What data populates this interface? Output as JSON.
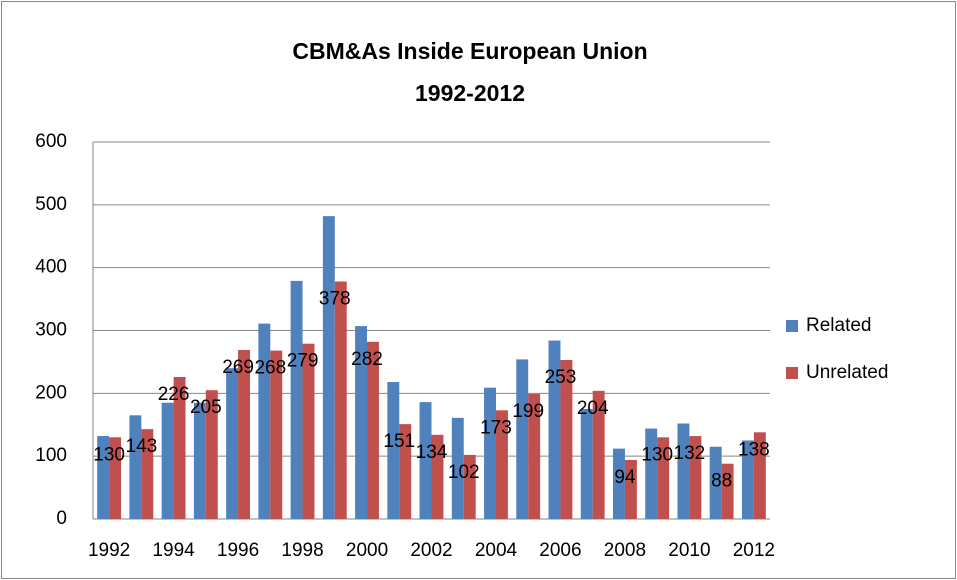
{
  "chart_data": {
    "type": "bar",
    "title": [
      "CBM&As Inside European Union",
      "1992-2012"
    ],
    "categories": [
      "1992",
      null,
      "1994",
      null,
      "1996",
      null,
      "1998",
      null,
      "2000",
      null,
      "2002",
      null,
      "2004",
      null,
      "2006",
      null,
      "2008",
      null,
      "2010",
      null,
      "2012"
    ],
    "series": [
      {
        "name": "Related",
        "color": "#4f81bd",
        "values": [
          132,
          165,
          185,
          185,
          240,
          311,
          379,
          482,
          307,
          218,
          186,
          161,
          209,
          254,
          284,
          175,
          112,
          144,
          152,
          115,
          125
        ]
      },
      {
        "name": "Unrelated",
        "color": "#c0504d",
        "values": [
          130,
          143,
          226,
          205,
          269,
          268,
          279,
          378,
          282,
          151,
          134,
          102,
          173,
          199,
          253,
          204,
          94,
          130,
          132,
          88,
          138
        ],
        "data_labels": true
      }
    ],
    "ylim": [
      0,
      600
    ],
    "yticks": [
      0,
      100,
      200,
      300,
      400,
      500,
      600
    ],
    "grid": true,
    "legend": "right"
  }
}
